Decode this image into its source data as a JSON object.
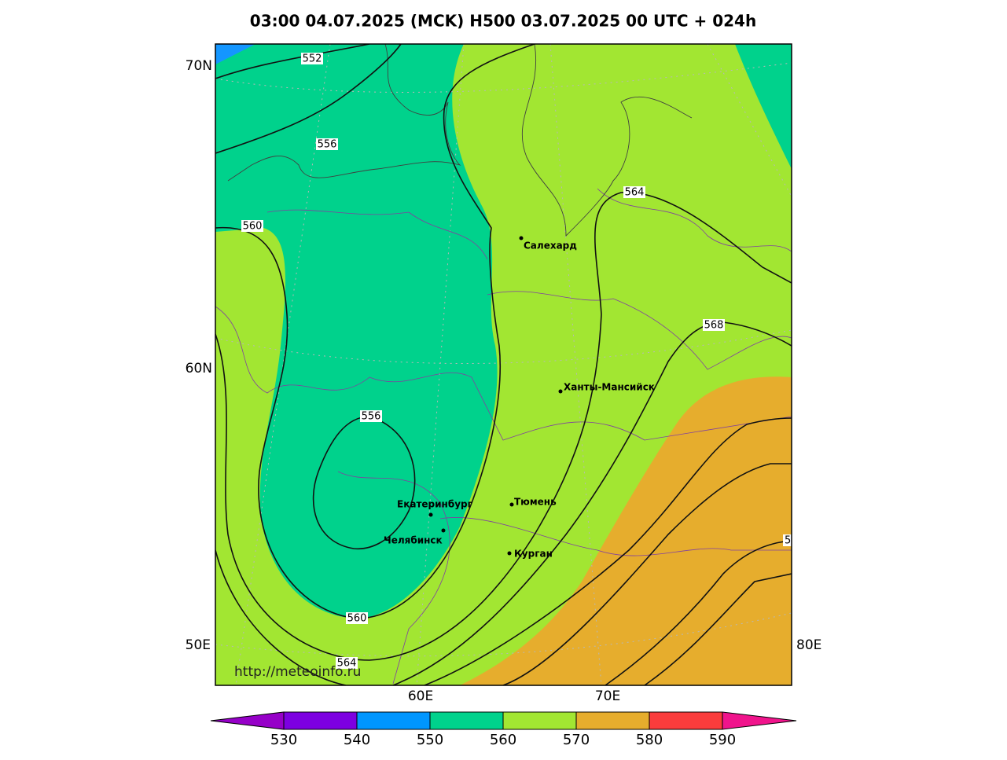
{
  "title": "03:00 04.07.2025 (MCK) H500  03.07.2025 00 UTC + 024h",
  "lat_labels": [
    "70N",
    "60N"
  ],
  "lon_labels": [
    "50E",
    "80E",
    "60E",
    "70E"
  ],
  "contour_labels": [
    "552",
    "556",
    "560",
    "564",
    "568",
    "556",
    "560",
    "564",
    "5"
  ],
  "cities": [
    "Салехард",
    "Ханты-Мансийск",
    "Екатеринбург",
    "Тюмень",
    "Челябинск",
    "Курган"
  ],
  "watermark": "http://meteoinfo.ru",
  "colorbar_labels": [
    530,
    540,
    550,
    560,
    570,
    580,
    590
  ]
}
